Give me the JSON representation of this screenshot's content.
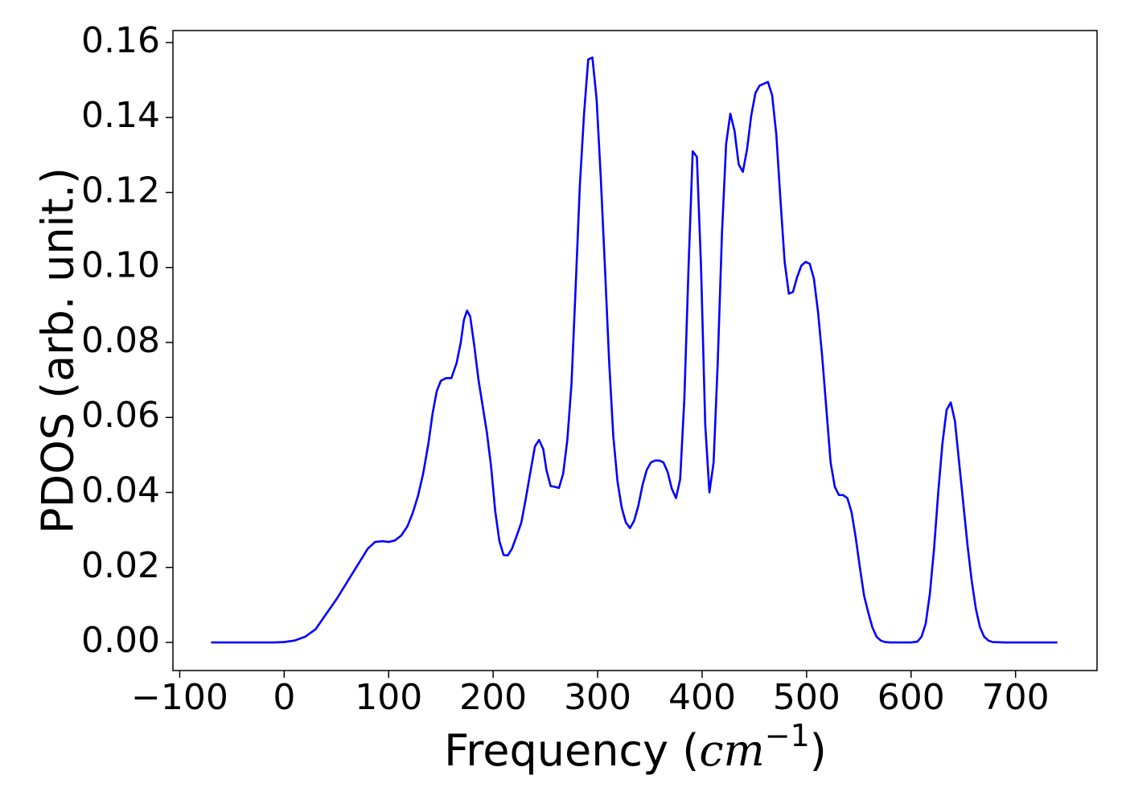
{
  "chart_data": {
    "type": "line",
    "xlabel": [
      "Frequency (",
      "cm",
      "−1",
      ")"
    ],
    "ylabel": "PDOS (arb. unit.)",
    "color": "#0000ff",
    "xlim": [
      -106.5,
      778
    ],
    "ylim": [
      -0.0075,
      0.1632
    ],
    "xticks": [
      {
        "value": -100,
        "label": "−100"
      },
      0,
      100,
      200,
      300,
      400,
      500,
      600,
      700
    ],
    "yticks": [
      {
        "value": 0,
        "label": "0.00"
      },
      {
        "value": 0.02,
        "label": "0.02"
      },
      {
        "value": 0.04,
        "label": "0.04"
      },
      {
        "value": 0.06,
        "label": "0.06"
      },
      {
        "value": 0.08,
        "label": "0.08"
      },
      {
        "value": 0.1,
        "label": "0.10"
      },
      {
        "value": 0.12,
        "label": "0.12"
      },
      {
        "value": 0.14,
        "label": "0.14"
      },
      {
        "value": 0.16,
        "label": "0.16"
      }
    ],
    "grid": false,
    "x": [
      -70,
      -60,
      -50,
      -40,
      -30,
      -20,
      -10,
      0,
      10,
      20,
      30,
      40,
      50,
      60,
      70,
      80,
      87,
      94,
      100,
      106,
      112,
      118,
      123,
      128,
      133,
      138,
      142,
      146,
      150,
      155,
      160,
      165,
      169,
      172,
      175,
      178,
      182,
      186,
      190,
      194,
      198,
      202,
      206,
      210,
      214,
      218,
      222,
      227,
      231,
      236,
      240,
      244,
      248,
      251,
      255,
      259,
      263,
      267,
      271,
      275,
      279,
      283,
      287,
      291,
      295,
      299,
      303,
      307,
      311,
      315,
      319,
      323,
      327,
      331,
      335,
      339,
      343,
      347,
      351,
      355,
      359,
      363,
      367,
      371,
      375,
      379,
      383,
      387,
      391,
      395,
      399,
      403,
      407,
      411,
      415,
      419,
      423,
      427,
      431,
      435,
      439,
      443,
      447,
      451,
      455,
      459,
      463,
      467,
      471,
      475,
      479,
      483,
      487,
      491,
      495,
      499,
      503,
      507,
      511,
      515,
      519,
      523,
      527,
      531,
      535,
      539,
      543,
      547,
      551,
      555,
      559,
      563,
      567,
      571,
      575,
      580,
      590,
      600,
      606,
      610,
      614,
      618,
      622,
      626,
      630,
      634,
      638,
      642,
      646,
      650,
      654,
      658,
      662,
      666,
      670,
      674,
      678,
      690,
      710,
      740
    ],
    "values": [
      0,
      0,
      0,
      0,
      0,
      0,
      0,
      0.0001,
      0.0005,
      0.0015,
      0.0035,
      0.0075,
      0.0115,
      0.016,
      0.0205,
      0.025,
      0.0268,
      0.027,
      0.0268,
      0.0272,
      0.0285,
      0.031,
      0.0345,
      0.039,
      0.045,
      0.053,
      0.061,
      0.067,
      0.0698,
      0.0705,
      0.0705,
      0.0745,
      0.08,
      0.086,
      0.0885,
      0.087,
      0.079,
      0.07,
      0.063,
      0.056,
      0.047,
      0.035,
      0.027,
      0.0233,
      0.0232,
      0.025,
      0.028,
      0.032,
      0.038,
      0.046,
      0.0523,
      0.054,
      0.0515,
      0.046,
      0.0417,
      0.0415,
      0.0412,
      0.045,
      0.054,
      0.069,
      0.095,
      0.122,
      0.141,
      0.1555,
      0.156,
      0.145,
      0.124,
      0.1,
      0.075,
      0.055,
      0.043,
      0.036,
      0.032,
      0.0305,
      0.0325,
      0.0365,
      0.042,
      0.046,
      0.048,
      0.0485,
      0.0485,
      0.048,
      0.0455,
      0.041,
      0.0385,
      0.0435,
      0.065,
      0.1,
      0.131,
      0.1295,
      0.1,
      0.058,
      0.04,
      0.048,
      0.075,
      0.109,
      0.133,
      0.141,
      0.1365,
      0.1275,
      0.1255,
      0.1315,
      0.1405,
      0.1465,
      0.1485,
      0.149,
      0.1495,
      0.146,
      0.1355,
      0.118,
      0.1015,
      0.093,
      0.0935,
      0.0975,
      0.1005,
      0.1015,
      0.101,
      0.097,
      0.088,
      0.076,
      0.062,
      0.048,
      0.0415,
      0.0393,
      0.0393,
      0.0385,
      0.0348,
      0.028,
      0.02,
      0.0125,
      0.008,
      0.004,
      0.0015,
      0.0005,
      0.0001,
      0,
      0,
      0,
      0.0002,
      0.0015,
      0.005,
      0.013,
      0.025,
      0.04,
      0.053,
      0.062,
      0.064,
      0.059,
      0.048,
      0.037,
      0.026,
      0.0165,
      0.009,
      0.004,
      0.0015,
      0.0005,
      0.0001,
      0,
      0,
      0
    ]
  }
}
